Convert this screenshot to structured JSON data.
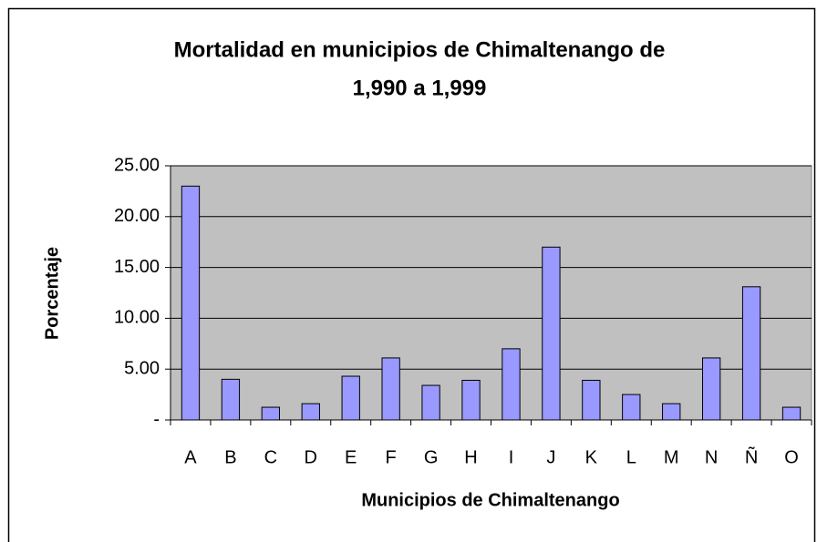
{
  "chart_data": {
    "type": "bar",
    "title": [
      "Mortalidad en municipios de Chimaltenango de",
      "1,990 a 1,999"
    ],
    "x_label": "Municipios de Chimaltenango",
    "y_label": "Porcentaje",
    "categories": [
      "A",
      "B",
      "C",
      "D",
      "E",
      "F",
      "G",
      "H",
      "I",
      "J",
      "K",
      "L",
      "M",
      "N",
      "Ñ",
      "O"
    ],
    "values": [
      23,
      4,
      1.25,
      1.6,
      4.3,
      6.1,
      3.4,
      3.9,
      7,
      17,
      3.9,
      2.5,
      1.6,
      6.1,
      13.1,
      1.25
    ],
    "color": "#9999ff",
    "ylim": [
      0,
      25
    ],
    "yticks": [
      {
        "value": 0,
        "label": "-"
      },
      {
        "value": 5,
        "label": "5.00"
      },
      {
        "value": 10,
        "label": "10.00"
      },
      {
        "value": 15,
        "label": "15.00"
      },
      {
        "value": 20,
        "label": "20.00"
      },
      {
        "value": 25,
        "label": "25.00"
      }
    ],
    "grid": true
  }
}
